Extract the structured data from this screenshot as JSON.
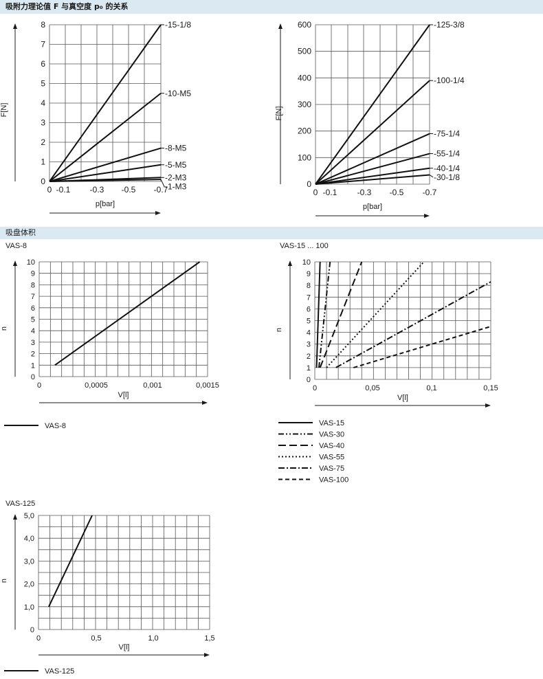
{
  "section1_title": "吸附力理论值 F 与真空度 p₀ 的关系",
  "section2_title": "吸盘体积",
  "chart_data": [
    {
      "id": "force_small",
      "type": "line",
      "xlabel": "p[bar]",
      "ylabel": "F[N]",
      "x_ticks": [
        "0",
        "-0.1",
        "-0.3",
        "-0.5",
        "-0.7"
      ],
      "y_ticks": [
        "0",
        "1",
        "2",
        "3",
        "4",
        "5",
        "6",
        "7",
        "8"
      ],
      "xlim": [
        0,
        -0.7
      ],
      "ylim": [
        0,
        8
      ],
      "series": [
        {
          "name": "-15-1/8",
          "x": [
            0,
            -0.7
          ],
          "y": [
            0,
            8.0
          ]
        },
        {
          "name": "-10-M5",
          "x": [
            0,
            -0.7
          ],
          "y": [
            0,
            4.5
          ]
        },
        {
          "name": "-8-M5",
          "x": [
            0,
            -0.7
          ],
          "y": [
            0,
            1.7
          ]
        },
        {
          "name": "-5-M5",
          "x": [
            0,
            -0.7
          ],
          "y": [
            0,
            0.85
          ]
        },
        {
          "name": "-2-M3",
          "x": [
            0,
            -0.7
          ],
          "y": [
            0,
            0.2
          ]
        },
        {
          "name": "-1-M3",
          "x": [
            0,
            -0.7
          ],
          "y": [
            0,
            0.1
          ]
        }
      ]
    },
    {
      "id": "force_large",
      "type": "line",
      "xlabel": "p[bar]",
      "ylabel": "F[N]",
      "x_ticks": [
        "0",
        "-0.1",
        "-0.3",
        "-0.5",
        "-0.7"
      ],
      "y_ticks": [
        "0",
        "100",
        "200",
        "300",
        "400",
        "500",
        "600"
      ],
      "xlim": [
        0,
        -0.7
      ],
      "ylim": [
        0,
        600
      ],
      "series": [
        {
          "name": "-125-3/8",
          "x": [
            0,
            -0.7
          ],
          "y": [
            0,
            600
          ]
        },
        {
          "name": "-100-1/4",
          "x": [
            0,
            -0.7
          ],
          "y": [
            0,
            390
          ]
        },
        {
          "name": "-75-1/4",
          "x": [
            0,
            -0.7
          ],
          "y": [
            0,
            190
          ]
        },
        {
          "name": "-55-1/4",
          "x": [
            0,
            -0.7
          ],
          "y": [
            0,
            115
          ]
        },
        {
          "name": "-40-1/4",
          "x": [
            0,
            -0.7
          ],
          "y": [
            0,
            60
          ]
        },
        {
          "name": "-30-1/8",
          "x": [
            0,
            -0.7
          ],
          "y": [
            0,
            35
          ]
        }
      ]
    },
    {
      "id": "vas8",
      "type": "line",
      "title": "VAS-8",
      "xlabel": "V[l]",
      "ylabel": "n",
      "x_ticks": [
        "0",
        "0,0005",
        "0,001",
        "0,0015"
      ],
      "y_ticks": [
        "0",
        "1",
        "2",
        "3",
        "4",
        "5",
        "6",
        "7",
        "8",
        "9",
        "10"
      ],
      "xlim": [
        0,
        0.0015
      ],
      "ylim": [
        0,
        10
      ],
      "series": [
        {
          "name": "VAS-8",
          "dash": "solid",
          "x": [
            0.00014,
            0.00143
          ],
          "y": [
            1,
            10
          ]
        }
      ]
    },
    {
      "id": "vas15_100",
      "type": "line",
      "title": "VAS-15 ... 100",
      "xlabel": "V[l]",
      "ylabel": "n",
      "x_ticks": [
        "0",
        "0,05",
        "0,1",
        "0,15"
      ],
      "y_ticks": [
        "0",
        "1",
        "2",
        "3",
        "4",
        "5",
        "6",
        "7",
        "8",
        "9",
        "10"
      ],
      "xlim": [
        0,
        0.15
      ],
      "ylim": [
        0,
        10
      ],
      "series": [
        {
          "name": "VAS-15",
          "dash": "solid",
          "x": [
            0.0015,
            0.0045
          ],
          "y": [
            1,
            10
          ]
        },
        {
          "name": "VAS-30",
          "dash": "dashdotdot",
          "x": [
            0.0035,
            0.013
          ],
          "y": [
            1,
            10
          ]
        },
        {
          "name": "VAS-40",
          "dash": "longdash",
          "x": [
            0.0045,
            0.04
          ],
          "y": [
            1,
            10
          ]
        },
        {
          "name": "VAS-55",
          "dash": "dotted",
          "x": [
            0.01,
            0.093
          ],
          "y": [
            1,
            10
          ]
        },
        {
          "name": "VAS-75",
          "dash": "dashdot",
          "x": [
            0.018,
            0.15
          ],
          "y": [
            1,
            8.3
          ]
        },
        {
          "name": "VAS-100",
          "dash": "dashed",
          "x": [
            0.033,
            0.15
          ],
          "y": [
            1,
            4.5
          ]
        }
      ]
    },
    {
      "id": "vas125",
      "type": "line",
      "title": "VAS-125",
      "xlabel": "V[l]",
      "ylabel": "n",
      "x_ticks": [
        "0",
        "0,5",
        "1,0",
        "1,5"
      ],
      "y_ticks": [
        "0",
        "1,0",
        "2,0",
        "3,0",
        "4,0",
        "5,0"
      ],
      "xlim": [
        0,
        1.5
      ],
      "ylim": [
        0,
        5
      ],
      "series": [
        {
          "name": "VAS-125",
          "dash": "solid",
          "x": [
            0.09,
            0.47
          ],
          "y": [
            1,
            5
          ]
        }
      ]
    }
  ]
}
